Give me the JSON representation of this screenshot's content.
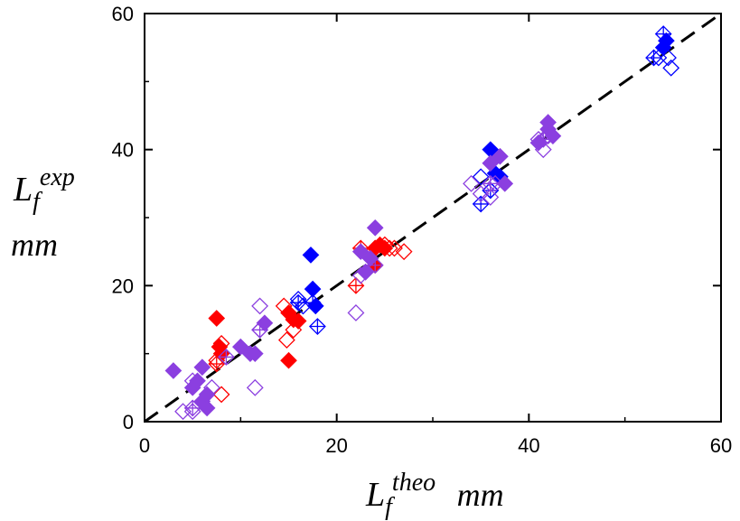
{
  "chart_data": {
    "type": "scatter",
    "title": "",
    "xlabel": {
      "main": "L",
      "subscript": "f",
      "superscript": "theo",
      "unit": "mm"
    },
    "ylabel": {
      "main": "L",
      "subscript": "f",
      "superscript": "exp",
      "unit": "mm"
    },
    "xlim": [
      0,
      60
    ],
    "ylim": [
      0,
      60
    ],
    "xticks": [
      "0",
      "20",
      "40",
      "60"
    ],
    "yticks": [
      "0",
      "20",
      "40",
      "60"
    ],
    "grid": false,
    "legend": "none",
    "reference_line": {
      "style": "dashed",
      "color": "#000000",
      "from": [
        0,
        0
      ],
      "to": [
        60,
        60
      ]
    },
    "series": [
      {
        "color": "#ff0000",
        "marker": "filled-diamond",
        "points": [
          [
            7.5,
            15.2
          ],
          [
            7.8,
            11
          ],
          [
            8,
            10
          ],
          [
            15,
            9
          ],
          [
            15,
            16
          ],
          [
            15.5,
            15
          ],
          [
            16,
            14.8
          ],
          [
            24,
            25.5
          ],
          [
            24.5,
            26
          ],
          [
            25,
            25.5
          ],
          [
            24,
            23
          ]
        ]
      },
      {
        "color": "#ff0000",
        "marker": "open-diamond",
        "points": [
          [
            7.5,
            9
          ],
          [
            8,
            4
          ],
          [
            8,
            11.5
          ],
          [
            14.5,
            17
          ],
          [
            14.8,
            12
          ],
          [
            15.5,
            13.5
          ],
          [
            25,
            26
          ],
          [
            25.5,
            25.5
          ],
          [
            26,
            25.5
          ],
          [
            27,
            25
          ]
        ]
      },
      {
        "color": "#ff0000",
        "marker": "crossed-diamond",
        "points": [
          [
            7.5,
            8.5
          ],
          [
            22,
            20
          ],
          [
            22.5,
            25.5
          ],
          [
            24,
            25.5
          ]
        ]
      },
      {
        "color": "#0000ff",
        "marker": "filled-diamond",
        "points": [
          [
            17.3,
            24.5
          ],
          [
            17.5,
            19.5
          ],
          [
            17.8,
            17
          ],
          [
            36,
            40
          ],
          [
            36.5,
            36.5
          ],
          [
            37,
            36
          ],
          [
            54,
            55
          ],
          [
            54.3,
            56
          ]
        ]
      },
      {
        "color": "#0000ff",
        "marker": "open-diamond",
        "points": [
          [
            16,
            18
          ],
          [
            16.5,
            17
          ],
          [
            35,
            36
          ],
          [
            36,
            34
          ],
          [
            53.5,
            53.5
          ],
          [
            54.5,
            53.5
          ],
          [
            54.8,
            52
          ]
        ]
      },
      {
        "color": "#0000ff",
        "marker": "crossed-diamond",
        "points": [
          [
            16,
            17.5
          ],
          [
            17.5,
            17.5
          ],
          [
            18,
            14
          ],
          [
            35,
            32
          ],
          [
            36,
            34
          ],
          [
            54,
            57
          ],
          [
            53,
            53.5
          ]
        ]
      },
      {
        "color": "#8b3fe0",
        "marker": "filled-diamond",
        "points": [
          [
            3,
            7.5
          ],
          [
            5,
            5
          ],
          [
            5.5,
            6
          ],
          [
            6,
            8
          ],
          [
            6,
            3
          ],
          [
            6.5,
            2
          ],
          [
            6.5,
            4
          ],
          [
            10,
            11
          ],
          [
            11,
            10
          ],
          [
            11.5,
            10
          ],
          [
            12.5,
            14.5
          ],
          [
            22.5,
            25
          ],
          [
            23,
            22
          ],
          [
            23.5,
            24
          ],
          [
            24,
            28.5
          ],
          [
            36,
            38
          ],
          [
            37,
            39
          ],
          [
            37.5,
            35
          ],
          [
            41,
            41
          ],
          [
            42,
            43
          ],
          [
            42.5,
            42
          ],
          [
            42,
            44
          ]
        ]
      },
      {
        "color": "#8b3fe0",
        "marker": "open-diamond",
        "points": [
          [
            4,
            1.5
          ],
          [
            5,
            1.5
          ],
          [
            5,
            6
          ],
          [
            7,
            5
          ],
          [
            11.5,
            5
          ],
          [
            12,
            17
          ],
          [
            12,
            13.5
          ],
          [
            22,
            16
          ],
          [
            22.5,
            21.5
          ],
          [
            23,
            22
          ],
          [
            34,
            35
          ],
          [
            35,
            33.5
          ],
          [
            36,
            33
          ],
          [
            36.5,
            35
          ],
          [
            41,
            41.5
          ],
          [
            41.5,
            40
          ],
          [
            42,
            42
          ]
        ]
      },
      {
        "color": "#8b3fe0",
        "marker": "crossed-diamond",
        "points": [
          [
            5,
            2
          ],
          [
            8.5,
            9.5
          ],
          [
            12,
            13.5
          ],
          [
            24,
            23
          ],
          [
            36,
            35
          ],
          [
            41.5,
            41.5
          ]
        ]
      }
    ]
  }
}
